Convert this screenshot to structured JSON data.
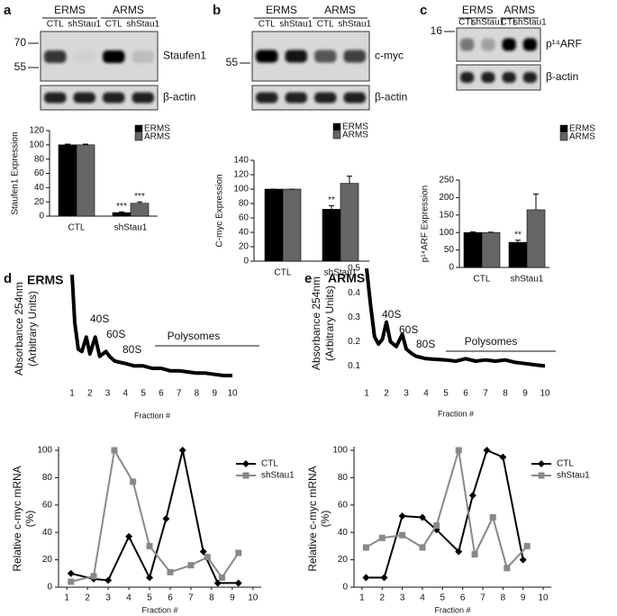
{
  "panel_labels": [
    "a",
    "b",
    "c",
    "d",
    "e"
  ],
  "blots": [
    {
      "groups": [
        "ERMS",
        "ARMS"
      ],
      "lanes": [
        "CTL",
        "shStau1",
        "CTL",
        "shStau1"
      ],
      "markers": [
        70,
        55
      ],
      "proteins": [
        "Staufen1",
        "β-actin"
      ]
    },
    {
      "groups": [
        "ERMS",
        "ARMS"
      ],
      "lanes": [
        "CTL",
        "shStau1",
        "CTL",
        "shStau1"
      ],
      "markers": [
        55
      ],
      "proteins": [
        "c-myc",
        "β-actin"
      ]
    },
    {
      "groups": [
        "ERMS",
        "ARMS"
      ],
      "lanes": [
        "CTL",
        "shStau1",
        "CTL",
        "shStau1"
      ],
      "markers": [
        16
      ],
      "proteins": [
        "p¹⁴ARF",
        "β-actin"
      ]
    }
  ],
  "profile_titles": [
    "ERMS",
    "ARMS"
  ],
  "chart_data": [
    {
      "type": "bar",
      "y_label": "Staufen1 Expression",
      "categories": [
        "CTL",
        "shStau1"
      ],
      "ylim": [
        0,
        120
      ],
      "yticks": [
        0,
        20,
        40,
        60,
        80,
        100,
        120
      ],
      "series": [
        {
          "name": "ERMS",
          "color": "#000000",
          "values": [
            100,
            5
          ],
          "errors": [
            1,
            1
          ],
          "significance": [
            null,
            "***"
          ]
        },
        {
          "name": "ARMS",
          "color": "#666666",
          "values": [
            100,
            18
          ],
          "errors": [
            1,
            2
          ],
          "significance": [
            null,
            "***"
          ]
        }
      ]
    },
    {
      "type": "bar",
      "y_label": "C-myc Expression",
      "categories": [
        "CTL",
        "shStau1"
      ],
      "ylim": [
        0,
        140
      ],
      "yticks": [
        0,
        20,
        40,
        60,
        80,
        100,
        120,
        140
      ],
      "series": [
        {
          "name": "ERMS",
          "color": "#000000",
          "values": [
            100,
            72
          ],
          "errors": [
            0,
            5
          ],
          "significance": [
            null,
            "**"
          ]
        },
        {
          "name": "ARMS",
          "color": "#666666",
          "values": [
            100,
            108
          ],
          "errors": [
            0,
            10
          ],
          "significance": [
            null,
            null
          ]
        }
      ]
    },
    {
      "type": "bar",
      "y_label": "p¹⁴ARF Expression",
      "categories": [
        "CTL",
        "shStau1"
      ],
      "ylim": [
        0,
        250
      ],
      "yticks": [
        0,
        50,
        100,
        150,
        200,
        250
      ],
      "series": [
        {
          "name": "ERMS",
          "color": "#000000",
          "values": [
            100,
            72
          ],
          "errors": [
            2,
            6
          ],
          "significance": [
            null,
            "**"
          ]
        },
        {
          "name": "ARMS",
          "color": "#666666",
          "values": [
            100,
            165
          ],
          "errors": [
            1,
            45
          ],
          "significance": [
            null,
            null
          ]
        }
      ]
    },
    {
      "type": "line",
      "x_label": "Fraction #",
      "y_label": [
        "Absorbance 254nm",
        "(Arbitrary Units)"
      ],
      "xlim": [
        1,
        10
      ],
      "xticks": [
        1,
        2,
        3,
        4,
        5,
        6,
        7,
        8,
        9,
        10
      ],
      "ylim": [
        0.05,
        0.5
      ],
      "annotations": [
        "40S",
        "60S",
        "80S",
        "Polysomes"
      ],
      "series": [
        {
          "color": "#000000",
          "x": [
            1,
            1.15,
            1.35,
            1.55,
            1.8,
            2.0,
            2.3,
            2.55,
            2.9,
            3.1,
            3.4,
            4,
            4.5,
            5,
            5.5,
            6,
            6.5,
            7,
            7.5,
            8,
            8.5,
            9,
            9.5,
            10
          ],
          "values": [
            0.5,
            0.3,
            0.19,
            0.18,
            0.24,
            0.17,
            0.24,
            0.16,
            0.18,
            0.16,
            0.14,
            0.13,
            0.12,
            0.12,
            0.11,
            0.11,
            0.1,
            0.1,
            0.095,
            0.09,
            0.09,
            0.085,
            0.08,
            0.08
          ]
        }
      ]
    },
    {
      "type": "line",
      "x_label": "Fraction #",
      "y_label": [
        "Absorbance 254nm",
        "(Arbitrary Units)"
      ],
      "xlim": [
        1,
        10
      ],
      "xticks": [
        1,
        2,
        3,
        4,
        5,
        6,
        7,
        8,
        9,
        10
      ],
      "ylim": [
        0.05,
        0.5
      ],
      "yticks": [
        0.1,
        0.2,
        0.3,
        0.4,
        0.5
      ],
      "annotations": [
        "40S",
        "60S",
        "80S",
        "Polysomes"
      ],
      "series": [
        {
          "color": "#000000",
          "x": [
            1,
            1.2,
            1.4,
            1.6,
            1.8,
            2,
            2.2,
            2.5,
            2.8,
            3.0,
            3.3,
            3.5,
            4,
            5,
            5.5,
            6,
            6.5,
            7,
            7.5,
            8,
            8.5,
            9,
            9.5,
            10
          ],
          "values": [
            0.5,
            0.35,
            0.22,
            0.19,
            0.21,
            0.28,
            0.2,
            0.18,
            0.23,
            0.17,
            0.15,
            0.14,
            0.13,
            0.125,
            0.12,
            0.13,
            0.12,
            0.125,
            0.12,
            0.125,
            0.115,
            0.11,
            0.105,
            0.1
          ]
        }
      ]
    },
    {
      "type": "line",
      "x_label": "Fraction #",
      "y_label": [
        "Relative c-myc mRNA",
        "(%)"
      ],
      "xlim": [
        0.6,
        10.4
      ],
      "xticks": [
        1,
        2,
        3,
        4,
        5,
        6,
        7,
        8,
        9,
        10
      ],
      "ylim": [
        0,
        100
      ],
      "yticks": [
        0,
        20,
        40,
        60,
        80,
        100
      ],
      "series": [
        {
          "name": "CTL",
          "color": "#000000",
          "marker": "diamond",
          "x": [
            1.2,
            2.3,
            3,
            4,
            5,
            5.8,
            6.6,
            7.6,
            8.3,
            9.3
          ],
          "values": [
            10,
            6,
            5,
            37,
            7,
            50,
            100,
            26,
            3,
            3
          ]
        },
        {
          "name": "shStau1",
          "color": "#888888",
          "marker": "square",
          "x": [
            1.2,
            2.3,
            3.3,
            4.2,
            5,
            6,
            7,
            7.8,
            8.5,
            9.3
          ],
          "values": [
            4,
            8,
            100,
            77,
            30,
            11,
            16,
            22,
            7,
            25
          ]
        }
      ]
    },
    {
      "type": "line",
      "x_label": "Fraction #",
      "y_label": [
        "Relative c-myc mRNA",
        "(%)"
      ],
      "xlim": [
        0.6,
        10.4
      ],
      "xticks": [
        1,
        2,
        3,
        4,
        5,
        6,
        7,
        8,
        9,
        10
      ],
      "ylim": [
        0,
        100
      ],
      "yticks": [
        0,
        20,
        40,
        60,
        80,
        100
      ],
      "series": [
        {
          "name": "CTL",
          "color": "#000000",
          "marker": "diamond",
          "x": [
            1.2,
            2.1,
            3,
            4,
            4.7,
            5.8,
            6.5,
            7.2,
            8,
            9
          ],
          "values": [
            7,
            7,
            52,
            51,
            42,
            26,
            67,
            100,
            95,
            20
          ]
        },
        {
          "name": "shStau1",
          "color": "#888888",
          "marker": "square",
          "x": [
            1.2,
            2,
            3,
            4,
            4.7,
            5.8,
            6.6,
            7.5,
            8.2,
            9.2
          ],
          "values": [
            29,
            36,
            38,
            29,
            45,
            100,
            24,
            51,
            14,
            30
          ]
        }
      ]
    }
  ]
}
